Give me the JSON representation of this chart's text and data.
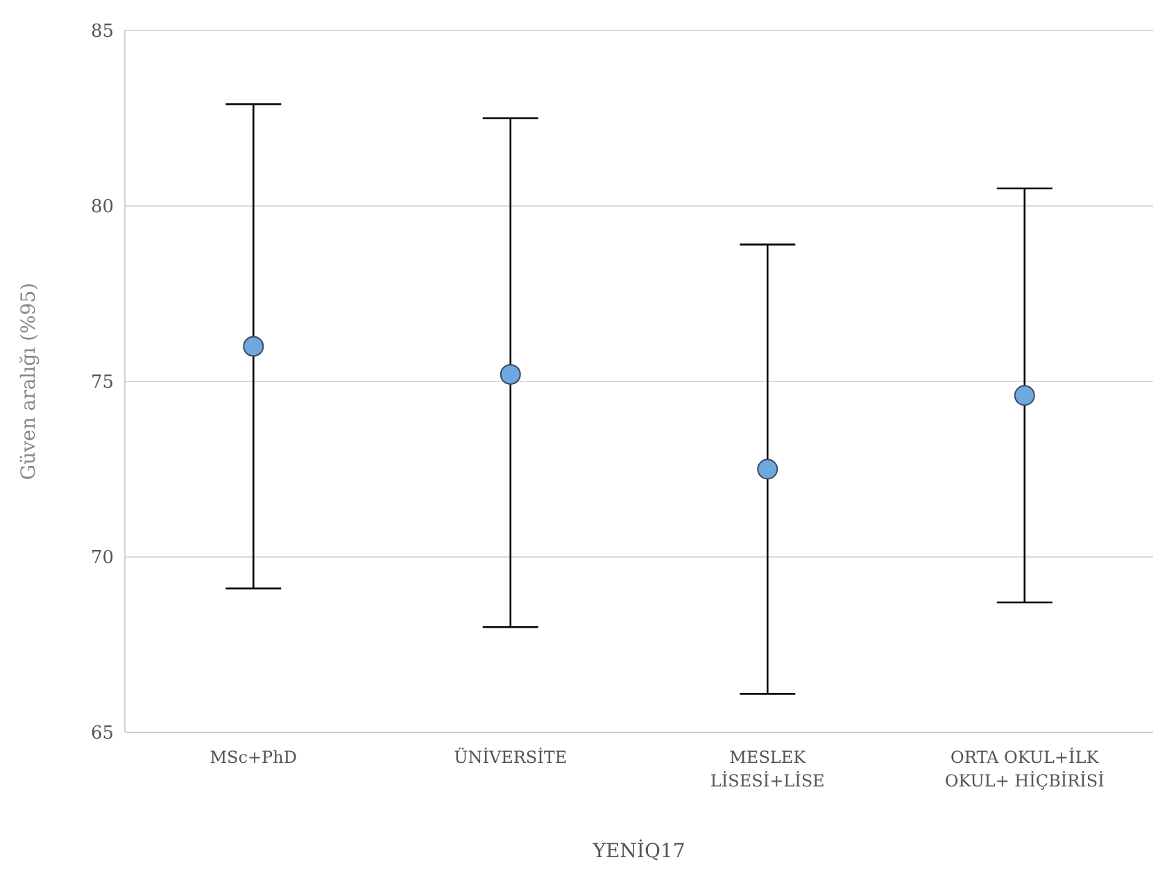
{
  "chart_data": {
    "type": "scatter",
    "xlabel": "YENİQ17",
    "ylabel": "Güven aralığı (%95)",
    "categories": [
      "MSc+PhD",
      "ÜNİVERSİTE",
      "MESLEK LİSESİ+LİSE",
      "ORTA OKUL+İLK OKUL+ HİÇBİRİSİ"
    ],
    "series": [
      {
        "color": "#6fa8e0",
        "values": [
          76.0,
          75.2,
          72.5,
          74.6
        ],
        "errors": [
          [
            69.1,
            82.9
          ],
          [
            68.0,
            82.5
          ],
          [
            66.1,
            78.9
          ],
          [
            68.7,
            80.5
          ]
        ]
      }
    ],
    "ylim": [
      65,
      85
    ],
    "yticks": [
      65,
      70,
      75,
      80,
      85
    ],
    "grid": "y",
    "marker": "circle"
  }
}
